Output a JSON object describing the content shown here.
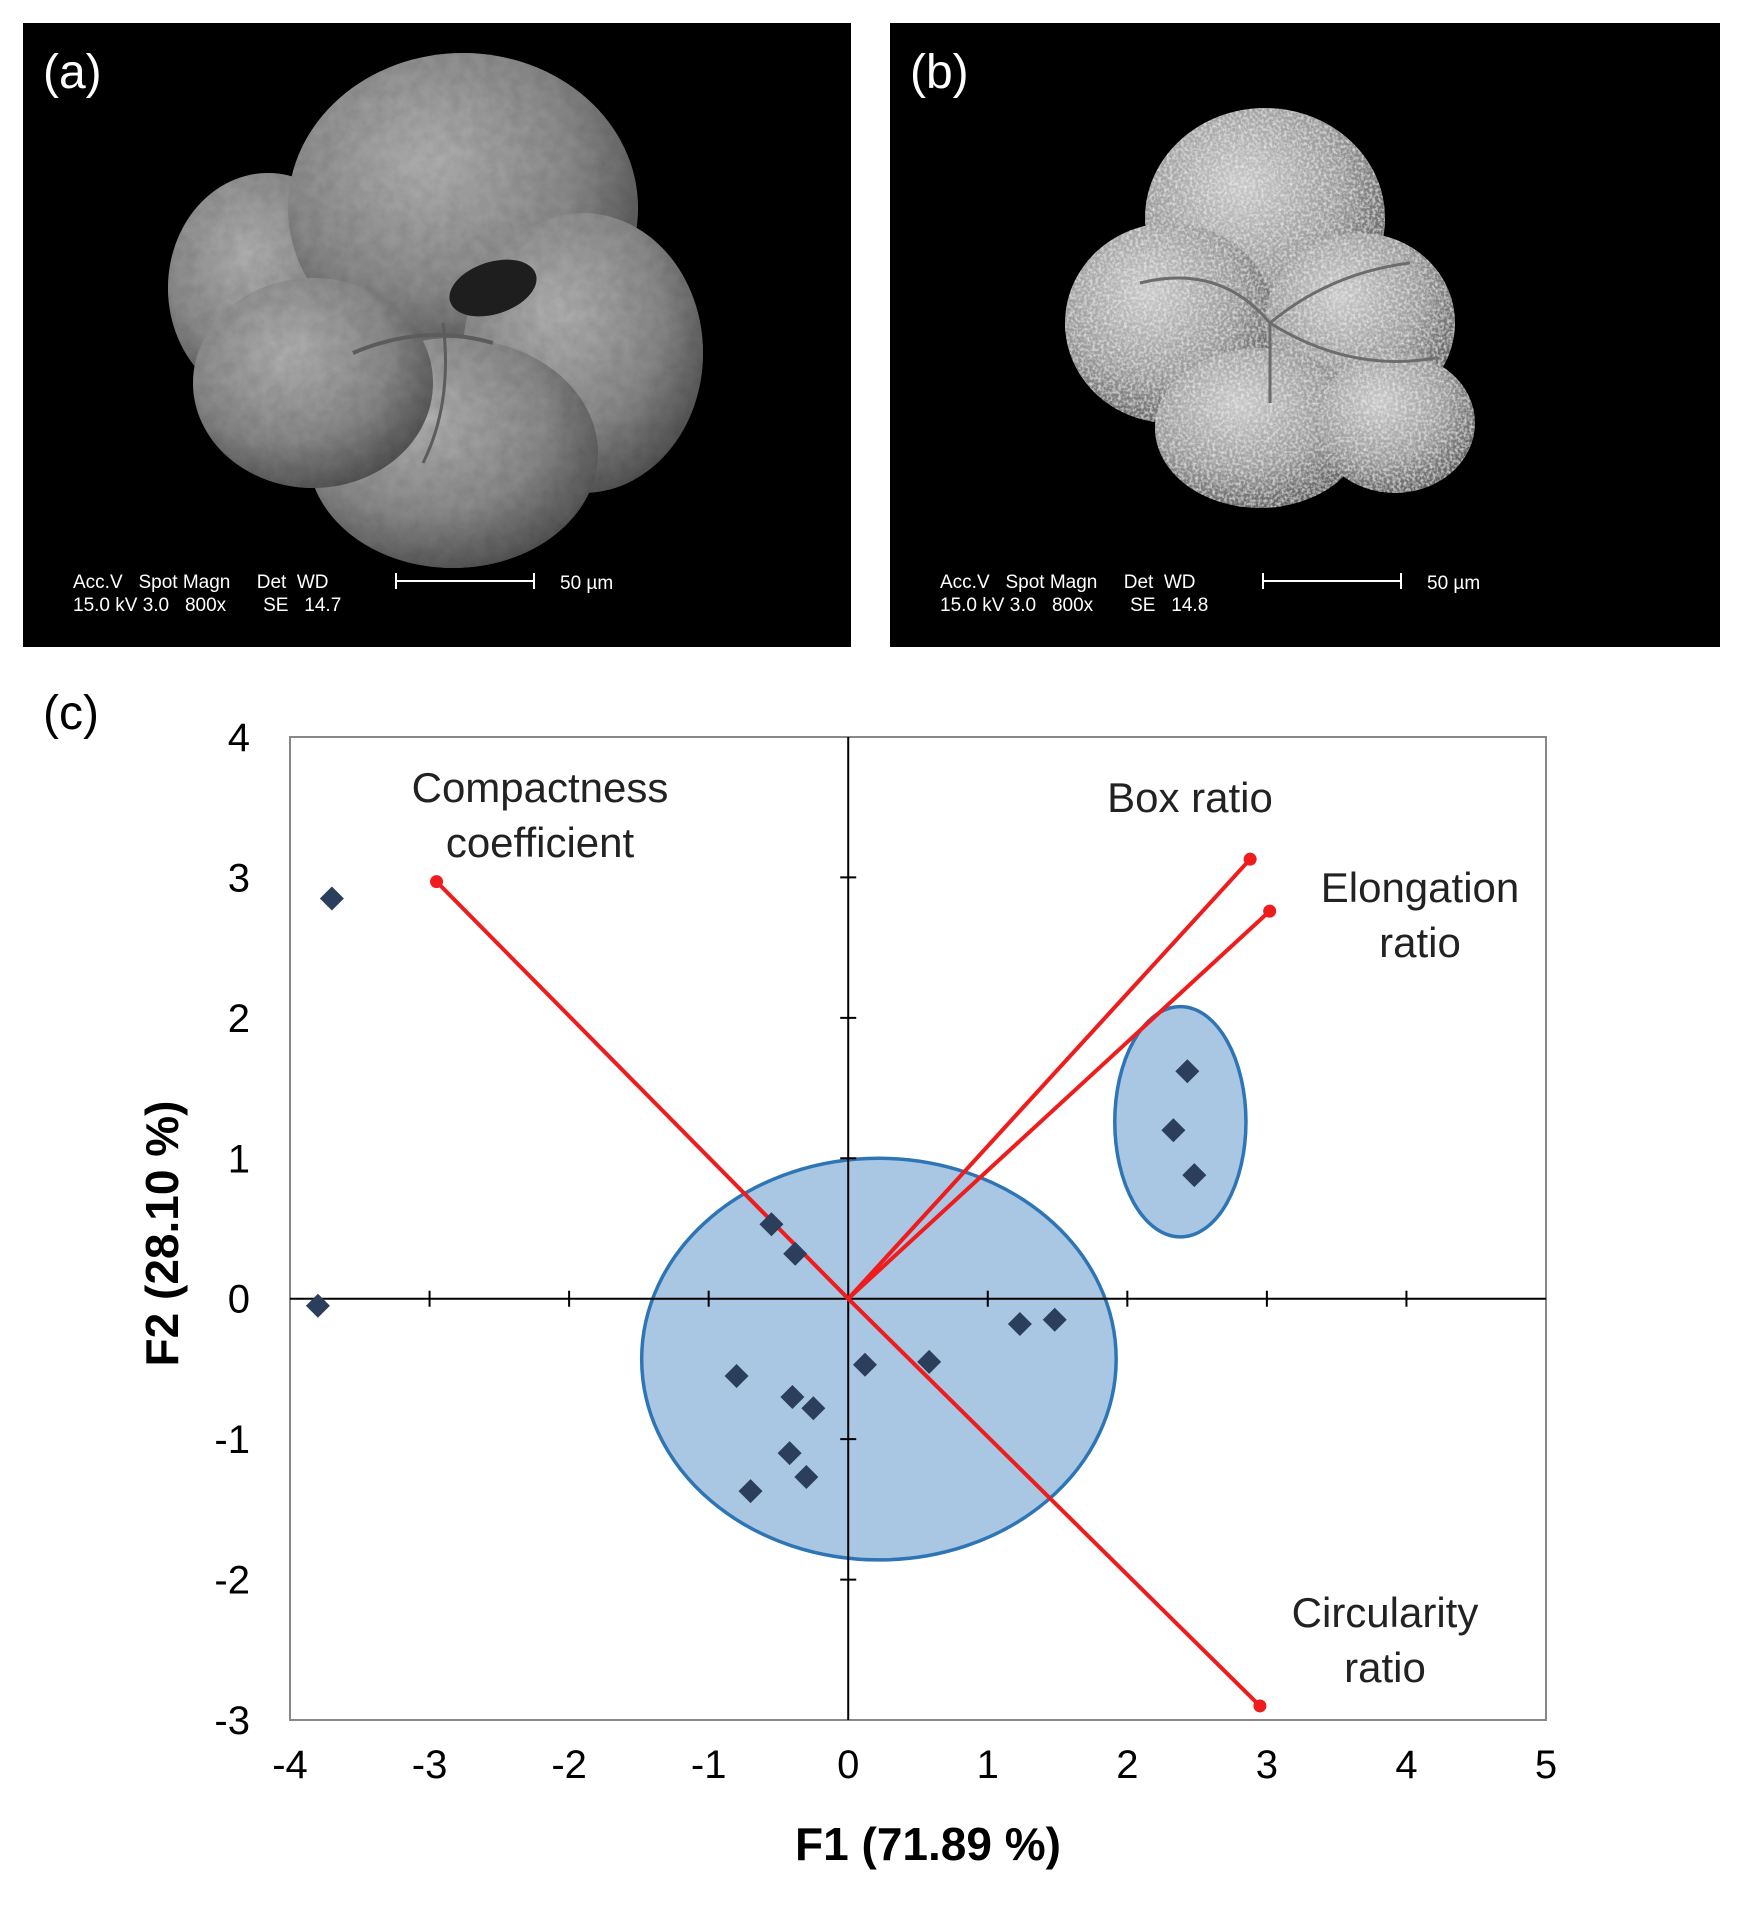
{
  "panels": {
    "a": {
      "label": "(a)",
      "info_line1": "Acc.V   Spot Magn     Det  WD",
      "info_line2": "15.0 kV 3.0   800x       SE   14.7",
      "scale_text": "50 µm"
    },
    "b": {
      "label": "(b)",
      "info_line1": "Acc.V   Spot Magn     Det  WD",
      "info_line2": "15.0 kV 3.0   800x       SE   14.8",
      "scale_text": "50 µm"
    },
    "c": {
      "label": "(c)"
    }
  },
  "colors": {
    "point": "#2b3f5c",
    "vector": "#ee1c1c",
    "ellipse_fill": "#a9c6e3",
    "ellipse_stroke": "#2e75b6",
    "axis": "#000000"
  },
  "chart_data": {
    "type": "scatter",
    "xlabel": "F1 (71.89 %)",
    "ylabel": "F2 (28.10 %)",
    "xlim": [
      -4,
      5
    ],
    "ylim": [
      -3,
      4
    ],
    "xticks": [
      -4,
      -3,
      -2,
      -1,
      0,
      1,
      2,
      3,
      4,
      5
    ],
    "yticks": [
      -3,
      -2,
      -1,
      0,
      1,
      2,
      3,
      4
    ],
    "grid": false,
    "points": [
      {
        "x": -3.7,
        "y": 2.85
      },
      {
        "x": -3.8,
        "y": -0.05
      },
      {
        "x": -0.55,
        "y": 0.53
      },
      {
        "x": -0.38,
        "y": 0.32
      },
      {
        "x": -0.8,
        "y": -0.55
      },
      {
        "x": -0.4,
        "y": -0.7
      },
      {
        "x": -0.25,
        "y": -0.78
      },
      {
        "x": -0.42,
        "y": -1.1
      },
      {
        "x": -0.3,
        "y": -1.27
      },
      {
        "x": -0.7,
        "y": -1.37
      },
      {
        "x": 0.12,
        "y": -0.47
      },
      {
        "x": 0.58,
        "y": -0.45
      },
      {
        "x": 1.23,
        "y": -0.18
      },
      {
        "x": 1.48,
        "y": -0.15
      },
      {
        "x": 2.43,
        "y": 1.62
      },
      {
        "x": 2.33,
        "y": 1.2
      },
      {
        "x": 2.48,
        "y": 0.88
      }
    ],
    "vectors": [
      {
        "label_lines": [
          "Compactness",
          "coefficient"
        ],
        "x": -2.95,
        "y": 2.97
      },
      {
        "label_lines": [
          "Box ratio"
        ],
        "x": 2.88,
        "y": 3.13
      },
      {
        "label_lines": [
          "Elongation",
          "ratio"
        ],
        "x": 3.02,
        "y": 2.76
      },
      {
        "label_lines": [
          "Circularity",
          "ratio"
        ],
        "x": 2.95,
        "y": -2.9
      }
    ],
    "ellipses": [
      {
        "cx": 0.22,
        "cy": -0.43,
        "rx": 1.7,
        "ry": 1.43
      },
      {
        "cx": 2.38,
        "cy": 1.26,
        "rx": 0.47,
        "ry": 0.82
      }
    ]
  }
}
